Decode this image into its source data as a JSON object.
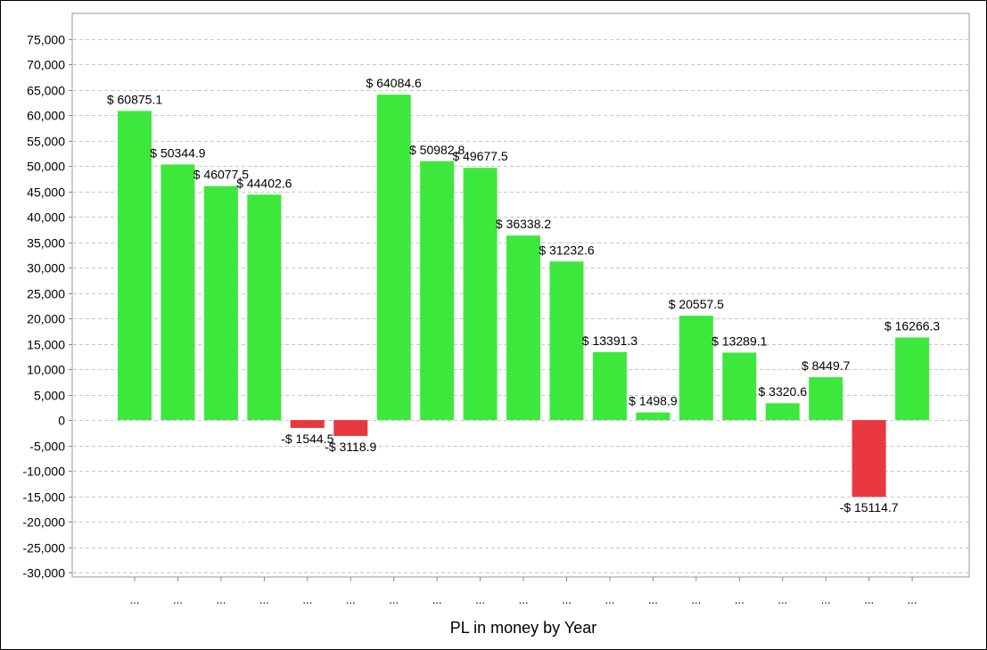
{
  "chart_data": {
    "type": "bar",
    "title": "",
    "xlabel": "PL in money by Year",
    "ylabel": "",
    "ylim": [
      -30000,
      75000
    ],
    "y_ticks": [
      75000,
      70000,
      65000,
      60000,
      55000,
      50000,
      45000,
      40000,
      35000,
      30000,
      25000,
      20000,
      15000,
      10000,
      5000,
      0,
      -5000,
      -10000,
      -15000,
      -20000,
      -25000,
      -30000
    ],
    "y_tick_labels": [
      "75,000",
      "70,000",
      "65,000",
      "60,000",
      "55,000",
      "50,000",
      "45,000",
      "40,000",
      "35,000",
      "30,000",
      "25,000",
      "20,000",
      "15,000",
      "10,000",
      "5,000",
      "0",
      "-5,000",
      "-10,000",
      "-15,000",
      "-20,000",
      "-25,000",
      "-30,000"
    ],
    "grid": true,
    "categories": [
      "...",
      "...",
      "...",
      "...",
      "...",
      "...",
      "...",
      "...",
      "...",
      "...",
      "...",
      "...",
      "...",
      "...",
      "...",
      "...",
      "...",
      "...",
      "..."
    ],
    "values": [
      60875.1,
      50344.9,
      46077.5,
      44402.6,
      -1544.5,
      -3118.9,
      64084.6,
      50982.8,
      49677.5,
      36338.2,
      31232.6,
      13391.3,
      1498.9,
      20557.5,
      13289.1,
      3320.6,
      8449.7,
      -15114.7,
      16266.3
    ],
    "data_labels": [
      "$ 60875.1",
      "$ 50344.9",
      "$ 46077.5",
      "$ 44402.6",
      "-$ 1544.5",
      "-$ 3118.9",
      "$ 64084.6",
      "$ 50982.8",
      "$ 49677.5",
      "$ 36338.2",
      "$ 31232.6",
      "$ 13391.3",
      "$ 1498.9",
      "$ 20557.5",
      "$ 13289.1",
      "$ 3320.6",
      "$ 8449.7",
      "-$ 15114.7",
      "$ 16266.3"
    ],
    "colors": {
      "positive": "#3DE83D",
      "negative": "#E8383D",
      "grid": "#c8c8c8",
      "axis": "#888888"
    }
  }
}
